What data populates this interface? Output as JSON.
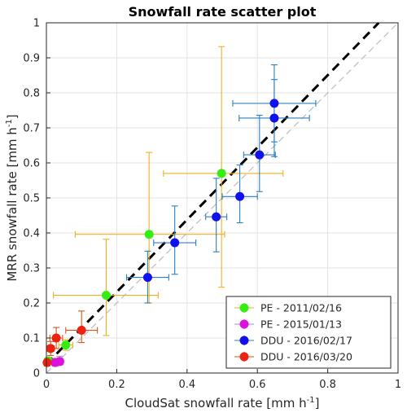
{
  "chart_data": {
    "type": "scatter",
    "title": "Snowfall rate scatter plot",
    "xlabel": "CloudSat snowfall rate [mm h",
    "xlabel_sup": "-1",
    "xlabel_end": "]",
    "ylabel": "MRR snowfall rate [mm h",
    "ylabel_sup": "-1",
    "ylabel_end": "]",
    "xlim": [
      0,
      1
    ],
    "ylim": [
      0,
      1
    ],
    "xticks": [
      0,
      0.2,
      0.4,
      0.6,
      0.8,
      1
    ],
    "xtick_labels": [
      "0",
      "0.2",
      "0.4",
      "0.6",
      "0.8",
      "1"
    ],
    "yticks": [
      0,
      0.1,
      0.2,
      0.3,
      0.4,
      0.5,
      0.6,
      0.7,
      0.8,
      0.9,
      1
    ],
    "ytick_labels": [
      "0",
      "0.1",
      "0.2",
      "0.3",
      "0.4",
      "0.5",
      "0.6",
      "0.7",
      "0.8",
      "0.9",
      "1"
    ],
    "grid": true,
    "legend_position": "bottom-right",
    "reference_lines": [
      {
        "kind": "one-to-one",
        "style": "dashed",
        "color": "#bdbdbd",
        "points": [
          [
            0,
            0
          ],
          [
            1,
            1
          ]
        ]
      },
      {
        "kind": "fit",
        "style": "dashed",
        "color": "#000000",
        "points": [
          [
            0,
            0.025
          ],
          [
            0.945,
            1
          ]
        ]
      }
    ],
    "series": [
      {
        "name": "PE - 2011/02/16",
        "marker_color": "#33ee11",
        "errorbar_color": "#edb120",
        "points": [
          {
            "x": 0.005,
            "y": 0.035,
            "xerr_low": 0.005,
            "xerr_high": 0.005,
            "yerr_low": 0.008,
            "yerr_high": 0.008
          },
          {
            "x": 0.055,
            "y": 0.08,
            "xerr_low": 0.02,
            "xerr_high": 0.02,
            "yerr_low": 0.015,
            "yerr_high": 0.015
          },
          {
            "x": 0.17,
            "y": 0.222,
            "xerr_low": 0.15,
            "xerr_high": 0.148,
            "yerr_low": 0.115,
            "yerr_high": 0.16
          },
          {
            "x": 0.292,
            "y": 0.396,
            "xerr_low": 0.21,
            "xerr_high": 0.215,
            "yerr_low": 0.196,
            "yerr_high": 0.234
          },
          {
            "x": 0.498,
            "y": 0.57,
            "xerr_low": 0.165,
            "xerr_high": 0.175,
            "yerr_low": 0.325,
            "yerr_high": 0.362
          }
        ]
      },
      {
        "name": "PE - 2015/01/13",
        "marker_color": "#dd11dd",
        "errorbar_color": "#a68cd1",
        "points": [
          {
            "x": 0.025,
            "y": 0.03,
            "xerr_low": 0.01,
            "xerr_high": 0.01,
            "yerr_low": 0.01,
            "yerr_high": 0.012
          },
          {
            "x": 0.038,
            "y": 0.033,
            "xerr_low": 0.01,
            "xerr_high": 0.01,
            "yerr_low": 0.01,
            "yerr_high": 0.015
          }
        ]
      },
      {
        "name": "DDU - 2016/02/17",
        "marker_color": "#1111ee",
        "errorbar_color": "#2d7fc0",
        "points": [
          {
            "x": 0.288,
            "y": 0.273,
            "xerr_low": 0.06,
            "xerr_high": 0.06,
            "yerr_low": 0.073,
            "yerr_high": 0.075
          },
          {
            "x": 0.365,
            "y": 0.372,
            "xerr_low": 0.06,
            "xerr_high": 0.06,
            "yerr_low": 0.09,
            "yerr_high": 0.105
          },
          {
            "x": 0.483,
            "y": 0.446,
            "xerr_low": 0.03,
            "xerr_high": 0.03,
            "yerr_low": 0.1,
            "yerr_high": 0.11
          },
          {
            "x": 0.55,
            "y": 0.504,
            "xerr_low": 0.05,
            "xerr_high": 0.05,
            "yerr_low": 0.075,
            "yerr_high": 0.09
          },
          {
            "x": 0.606,
            "y": 0.623,
            "xerr_low": 0.045,
            "xerr_high": 0.045,
            "yerr_low": 0.105,
            "yerr_high": 0.113
          },
          {
            "x": 0.648,
            "y": 0.728,
            "xerr_low": 0.1,
            "xerr_high": 0.1,
            "yerr_low": 0.11,
            "yerr_high": 0.11
          },
          {
            "x": 0.648,
            "y": 0.77,
            "xerr_low": 0.118,
            "xerr_high": 0.118,
            "yerr_low": 0.11,
            "yerr_high": 0.11
          }
        ]
      },
      {
        "name": "DDU - 2016/03/20",
        "marker_color": "#ee2211",
        "errorbar_color": "#d95319",
        "points": [
          {
            "x": 0.002,
            "y": 0.03,
            "xerr_low": 0.002,
            "xerr_high": 0.005,
            "yerr_low": 0.01,
            "yerr_high": 0.01
          },
          {
            "x": 0.012,
            "y": 0.07,
            "xerr_low": 0.01,
            "xerr_high": 0.01,
            "yerr_low": 0.02,
            "yerr_high": 0.02
          },
          {
            "x": 0.028,
            "y": 0.1,
            "xerr_low": 0.018,
            "xerr_high": 0.018,
            "yerr_low": 0.03,
            "yerr_high": 0.03
          },
          {
            "x": 0.1,
            "y": 0.122,
            "xerr_low": 0.045,
            "xerr_high": 0.045,
            "yerr_low": 0.035,
            "yerr_high": 0.055
          }
        ]
      }
    ]
  }
}
